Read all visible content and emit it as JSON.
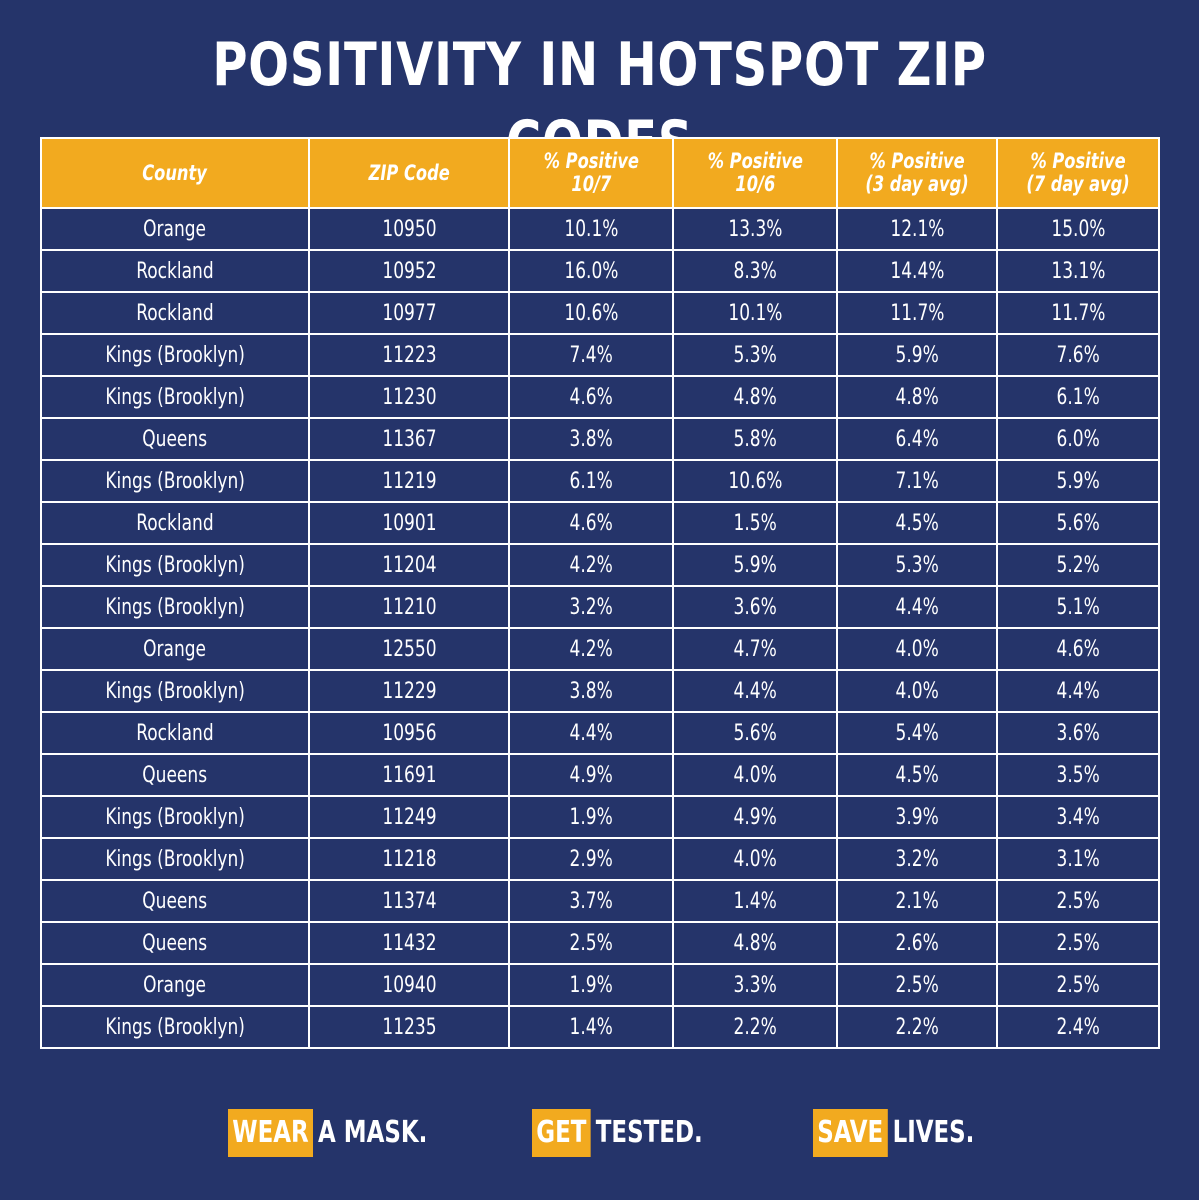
{
  "title": "POSITIVITY IN HOTSPOT ZIP CODES",
  "table": {
    "headers": [
      [
        "County"
      ],
      [
        "ZIP Code"
      ],
      [
        "% Positive",
        "10/7"
      ],
      [
        "% Positive",
        "10/6"
      ],
      [
        "% Positive",
        "(3 day avg)"
      ],
      [
        "% Positive",
        "(7 day avg)"
      ]
    ],
    "rows": [
      [
        "Orange",
        "10950",
        "10.1%",
        "13.3%",
        "12.1%",
        "15.0%"
      ],
      [
        "Rockland",
        "10952",
        "16.0%",
        "8.3%",
        "14.4%",
        "13.1%"
      ],
      [
        "Rockland",
        "10977",
        "10.6%",
        "10.1%",
        "11.7%",
        "11.7%"
      ],
      [
        "Kings (Brooklyn)",
        "11223",
        "7.4%",
        "5.3%",
        "5.9%",
        "7.6%"
      ],
      [
        "Kings (Brooklyn)",
        "11230",
        "4.6%",
        "4.8%",
        "4.8%",
        "6.1%"
      ],
      [
        "Queens",
        "11367",
        "3.8%",
        "5.8%",
        "6.4%",
        "6.0%"
      ],
      [
        "Kings (Brooklyn)",
        "11219",
        "6.1%",
        "10.6%",
        "7.1%",
        "5.9%"
      ],
      [
        "Rockland",
        "10901",
        "4.6%",
        "1.5%",
        "4.5%",
        "5.6%"
      ],
      [
        "Kings (Brooklyn)",
        "11204",
        "4.2%",
        "5.9%",
        "5.3%",
        "5.2%"
      ],
      [
        "Kings (Brooklyn)",
        "11210",
        "3.2%",
        "3.6%",
        "4.4%",
        "5.1%"
      ],
      [
        "Orange",
        "12550",
        "4.2%",
        "4.7%",
        "4.0%",
        "4.6%"
      ],
      [
        "Kings (Brooklyn)",
        "11229",
        "3.8%",
        "4.4%",
        "4.0%",
        "4.4%"
      ],
      [
        "Rockland",
        "10956",
        "4.4%",
        "5.6%",
        "5.4%",
        "3.6%"
      ],
      [
        "Queens",
        "11691",
        "4.9%",
        "4.0%",
        "4.5%",
        "3.5%"
      ],
      [
        "Kings (Brooklyn)",
        "11249",
        "1.9%",
        "4.9%",
        "3.9%",
        "3.4%"
      ],
      [
        "Kings (Brooklyn)",
        "11218",
        "2.9%",
        "4.0%",
        "3.2%",
        "3.1%"
      ],
      [
        "Queens",
        "11374",
        "3.7%",
        "1.4%",
        "2.1%",
        "2.5%"
      ],
      [
        "Queens",
        "11432",
        "2.5%",
        "4.8%",
        "2.6%",
        "2.5%"
      ],
      [
        "Orange",
        "10940",
        "1.9%",
        "3.3%",
        "2.5%",
        "2.5%"
      ],
      [
        "Kings (Brooklyn)",
        "11235",
        "1.4%",
        "2.2%",
        "2.2%",
        "2.4%"
      ]
    ]
  },
  "footer": [
    {
      "highlight": "WEAR",
      "rest": "A MASK."
    },
    {
      "highlight": "GET",
      "rest": "TESTED."
    },
    {
      "highlight": "SAVE",
      "rest": "LIVES."
    }
  ],
  "colors": {
    "background": "#25346a",
    "accent": "#f2aa1f",
    "text": "#ffffff"
  }
}
